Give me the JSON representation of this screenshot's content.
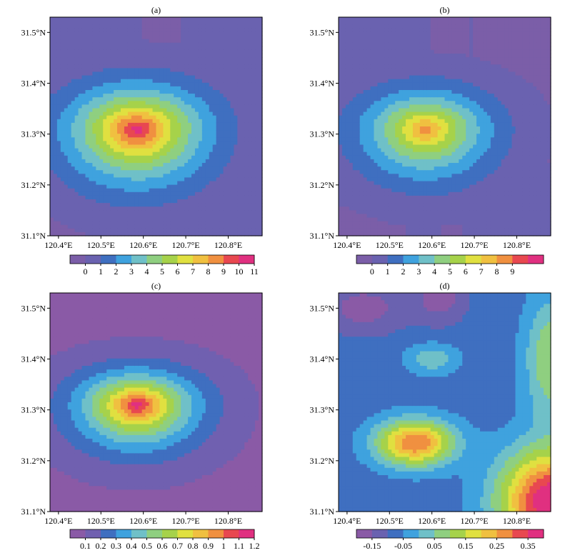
{
  "chart_data": [
    {
      "type": "heatmap",
      "label": "(a)",
      "xticks": [
        "120.4°E",
        "120.5°E",
        "120.6°E",
        "120.7°E",
        "120.8°E"
      ],
      "xtick_values": [
        120.4,
        120.5,
        120.6,
        120.7,
        120.8
      ],
      "yticks": [
        "31.1°N",
        "31.2°N",
        "31.3°N",
        "31.4°N",
        "31.5°N"
      ],
      "ytick_values": [
        31.1,
        31.2,
        31.3,
        31.4,
        31.5
      ],
      "xlim": [
        120.38,
        120.88
      ],
      "ylim": [
        31.1,
        31.53
      ],
      "colorbar_labels": [
        "0",
        "1",
        "2",
        "3",
        "4",
        "5",
        "6",
        "7",
        "8",
        "9",
        "10",
        "11"
      ],
      "colorbar_offset": 1,
      "colors": [
        "#7b5ea8",
        "#6a62b0",
        "#3f6fc0",
        "#3fa2de",
        "#6fc0c8",
        "#8fcf80",
        "#a6d24a",
        "#e0e040",
        "#f0c040",
        "#f09040",
        "#e84850",
        "#e03080"
      ],
      "field": {
        "background_level": 1,
        "low_patches": [
          {
            "level": 0,
            "x": 120.38,
            "y": 31.1,
            "w": 0.16,
            "h": 0.06
          },
          {
            "level": 0,
            "x": 120.62,
            "y": 31.1,
            "w": 0.05,
            "h": 0.07
          },
          {
            "level": 0,
            "x": 120.6,
            "y": 31.4,
            "w": 0.09,
            "h": 0.13
          }
        ],
        "peak": {
          "lon": 120.585,
          "lat": 31.31
        },
        "spread_lon": 0.2,
        "spread_lat": 0.13,
        "max_level": 11
      }
    },
    {
      "type": "heatmap",
      "label": "(b)",
      "xticks": [
        "120.4°E",
        "120.5°E",
        "120.6°E",
        "120.7°E",
        "120.8°E"
      ],
      "xtick_values": [
        120.4,
        120.5,
        120.6,
        120.7,
        120.8
      ],
      "yticks": [
        "31.1°N",
        "31.2°N",
        "31.3°N",
        "31.4°N",
        "31.5°N"
      ],
      "ytick_values": [
        31.1,
        31.2,
        31.3,
        31.4,
        31.5
      ],
      "xlim": [
        120.38,
        120.88
      ],
      "ylim": [
        31.1,
        31.53
      ],
      "colorbar_labels": [
        "0",
        "1",
        "2",
        "3",
        "4",
        "5",
        "6",
        "7",
        "8",
        "9"
      ],
      "colorbar_offset": 1,
      "colors": [
        "#7b5ea8",
        "#6a62b0",
        "#3f6fc0",
        "#3fa2de",
        "#6fc0c8",
        "#8fcf80",
        "#a6d24a",
        "#e0e040",
        "#f0c040",
        "#f09040",
        "#e84850",
        "#e03080"
      ],
      "field": {
        "background_level": 1,
        "low_patches": [
          {
            "level": 0,
            "x": 120.38,
            "y": 31.1,
            "w": 0.16,
            "h": 0.06
          },
          {
            "level": 0,
            "x": 120.62,
            "y": 31.1,
            "w": 0.05,
            "h": 0.07
          },
          {
            "level": 0,
            "x": 120.6,
            "y": 31.4,
            "w": 0.09,
            "h": 0.13
          },
          {
            "level": 0,
            "x": 120.7,
            "y": 31.24,
            "w": 0.18,
            "h": 0.29
          }
        ],
        "peak": {
          "lon": 120.585,
          "lat": 31.31
        },
        "spread_lon": 0.19,
        "spread_lat": 0.12,
        "max_level": 9
      }
    },
    {
      "type": "heatmap",
      "label": "(c)",
      "xticks": [
        "120.4°E",
        "120.5°E",
        "120.6°E",
        "120.7°E",
        "120.8°E"
      ],
      "xtick_values": [
        120.4,
        120.5,
        120.6,
        120.7,
        120.8
      ],
      "yticks": [
        "31.1°N",
        "31.2°N",
        "31.3°N",
        "31.4°N",
        "31.5°N"
      ],
      "ytick_values": [
        31.1,
        31.2,
        31.3,
        31.4,
        31.5
      ],
      "xlim": [
        120.38,
        120.88
      ],
      "ylim": [
        31.1,
        31.53
      ],
      "colorbar_labels": [
        "0.1",
        "0.2",
        "0.3",
        "0.4",
        "0.5",
        "0.6",
        "0.7",
        "0.8",
        "0.9",
        "1",
        "1.1",
        "1.2"
      ],
      "colorbar_offset": 1,
      "colors": [
        "#8a5aa6",
        "#7060b0",
        "#3f6fc0",
        "#3fa2de",
        "#6fc0c8",
        "#8fcf80",
        "#a6d24a",
        "#e0e040",
        "#f0c040",
        "#f09040",
        "#e84850",
        "#e03080"
      ],
      "field": {
        "background_level": 0,
        "low_patches": [],
        "peak": {
          "lon": 120.585,
          "lat": 31.31
        },
        "spread_lon": 0.17,
        "spread_lat": 0.1,
        "max_level": 11
      }
    },
    {
      "type": "heatmap",
      "label": "(d)",
      "xticks": [
        "120.4°E",
        "120.5°E",
        "120.6°E",
        "120.7°E",
        "120.8°E"
      ],
      "xtick_values": [
        120.4,
        120.5,
        120.6,
        120.7,
        120.8
      ],
      "yticks": [
        "31.1°N",
        "31.2°N",
        "31.3°N",
        "31.4°N",
        "31.5°N"
      ],
      "ytick_values": [
        31.1,
        31.2,
        31.3,
        31.4,
        31.5
      ],
      "xlim": [
        120.38,
        120.88
      ],
      "ylim": [
        31.1,
        31.53
      ],
      "colorbar_labels": [
        "-0.15",
        "-0.05",
        "0.05",
        "0.15",
        "0.25",
        "0.35"
      ],
      "colorbar_label_every": 2,
      "colorbar_offset": 1,
      "colors": [
        "#8a5aa6",
        "#6a62b0",
        "#3f6fc0",
        "#3fa2de",
        "#6fc0c8",
        "#8fcf80",
        "#a6d24a",
        "#e0e040",
        "#f0c040",
        "#f09040",
        "#e84850",
        "#e03080"
      ],
      "field": {
        "mode": "difference",
        "background_level": 2,
        "blobs": [
          {
            "lon": 120.56,
            "lat": 31.235,
            "slon": 0.09,
            "slat": 0.045,
            "amp": 7.5
          },
          {
            "lon": 120.88,
            "lat": 31.12,
            "slon": 0.12,
            "slat": 0.1,
            "amp": 9.5
          },
          {
            "lon": 120.88,
            "lat": 31.4,
            "slon": 0.06,
            "slat": 0.12,
            "amp": 3.5
          },
          {
            "lon": 120.6,
            "lat": 31.4,
            "slon": 0.06,
            "slat": 0.03,
            "amp": 2.2
          },
          {
            "lon": 120.62,
            "lat": 31.52,
            "slon": 0.06,
            "slat": 0.05,
            "amp": -2.0
          },
          {
            "lon": 120.44,
            "lat": 31.5,
            "slon": 0.1,
            "slat": 0.05,
            "amp": -2.0
          }
        ]
      }
    }
  ]
}
